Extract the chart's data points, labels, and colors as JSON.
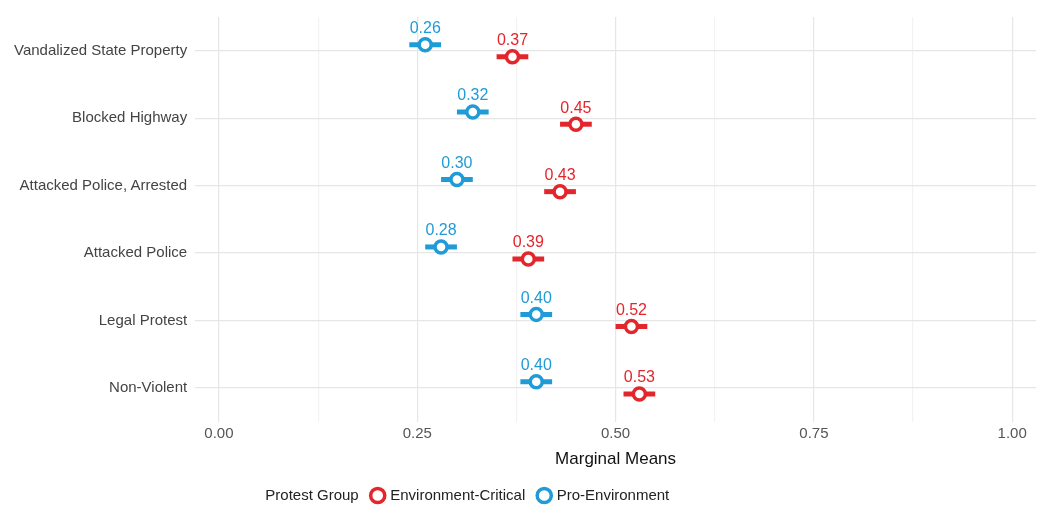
{
  "chart_data": {
    "type": "scatter",
    "xlabel": "Marginal Means",
    "legend_title": "Protest Group",
    "categories": [
      "Vandalized State Property",
      "Blocked Highway",
      "Attacked Police, Arrested",
      "Attacked Police",
      "Legal Protest",
      "Non-Violent"
    ],
    "orientation": "horizontal",
    "series": [
      {
        "name": "Environment-Critical",
        "color": "#e3262b",
        "values": [
          0.37,
          0.45,
          0.43,
          0.39,
          0.52,
          0.53
        ],
        "value_labels": [
          "0.37",
          "0.45",
          "0.43",
          "0.39",
          "0.52",
          "0.53"
        ],
        "errors": [
          0.02,
          0.02,
          0.02,
          0.02,
          0.02,
          0.02
        ]
      },
      {
        "name": "Pro-Environment",
        "color": "#1f9bd7",
        "values": [
          0.26,
          0.32,
          0.3,
          0.28,
          0.4,
          0.4
        ],
        "value_labels": [
          "0.26",
          "0.32",
          "0.30",
          "0.28",
          "0.40",
          "0.40"
        ],
        "errors": [
          0.02,
          0.02,
          0.02,
          0.02,
          0.02,
          0.02
        ]
      }
    ],
    "xlim": [
      -0.03,
      1.03
    ],
    "xticks": [
      {
        "value": 0,
        "label": "0.00"
      },
      {
        "value": 0.125,
        "label": null
      },
      {
        "value": 0.25,
        "label": "0.25"
      },
      {
        "value": 0.375,
        "label": null
      },
      {
        "value": 0.5,
        "label": "0.50"
      },
      {
        "value": 0.625,
        "label": null
      },
      {
        "value": 0.75,
        "label": "0.75"
      },
      {
        "value": 0.875,
        "label": null
      },
      {
        "value": 1,
        "label": "1.00"
      }
    ],
    "grid": true,
    "legend": "bottom",
    "marker": "circle"
  }
}
